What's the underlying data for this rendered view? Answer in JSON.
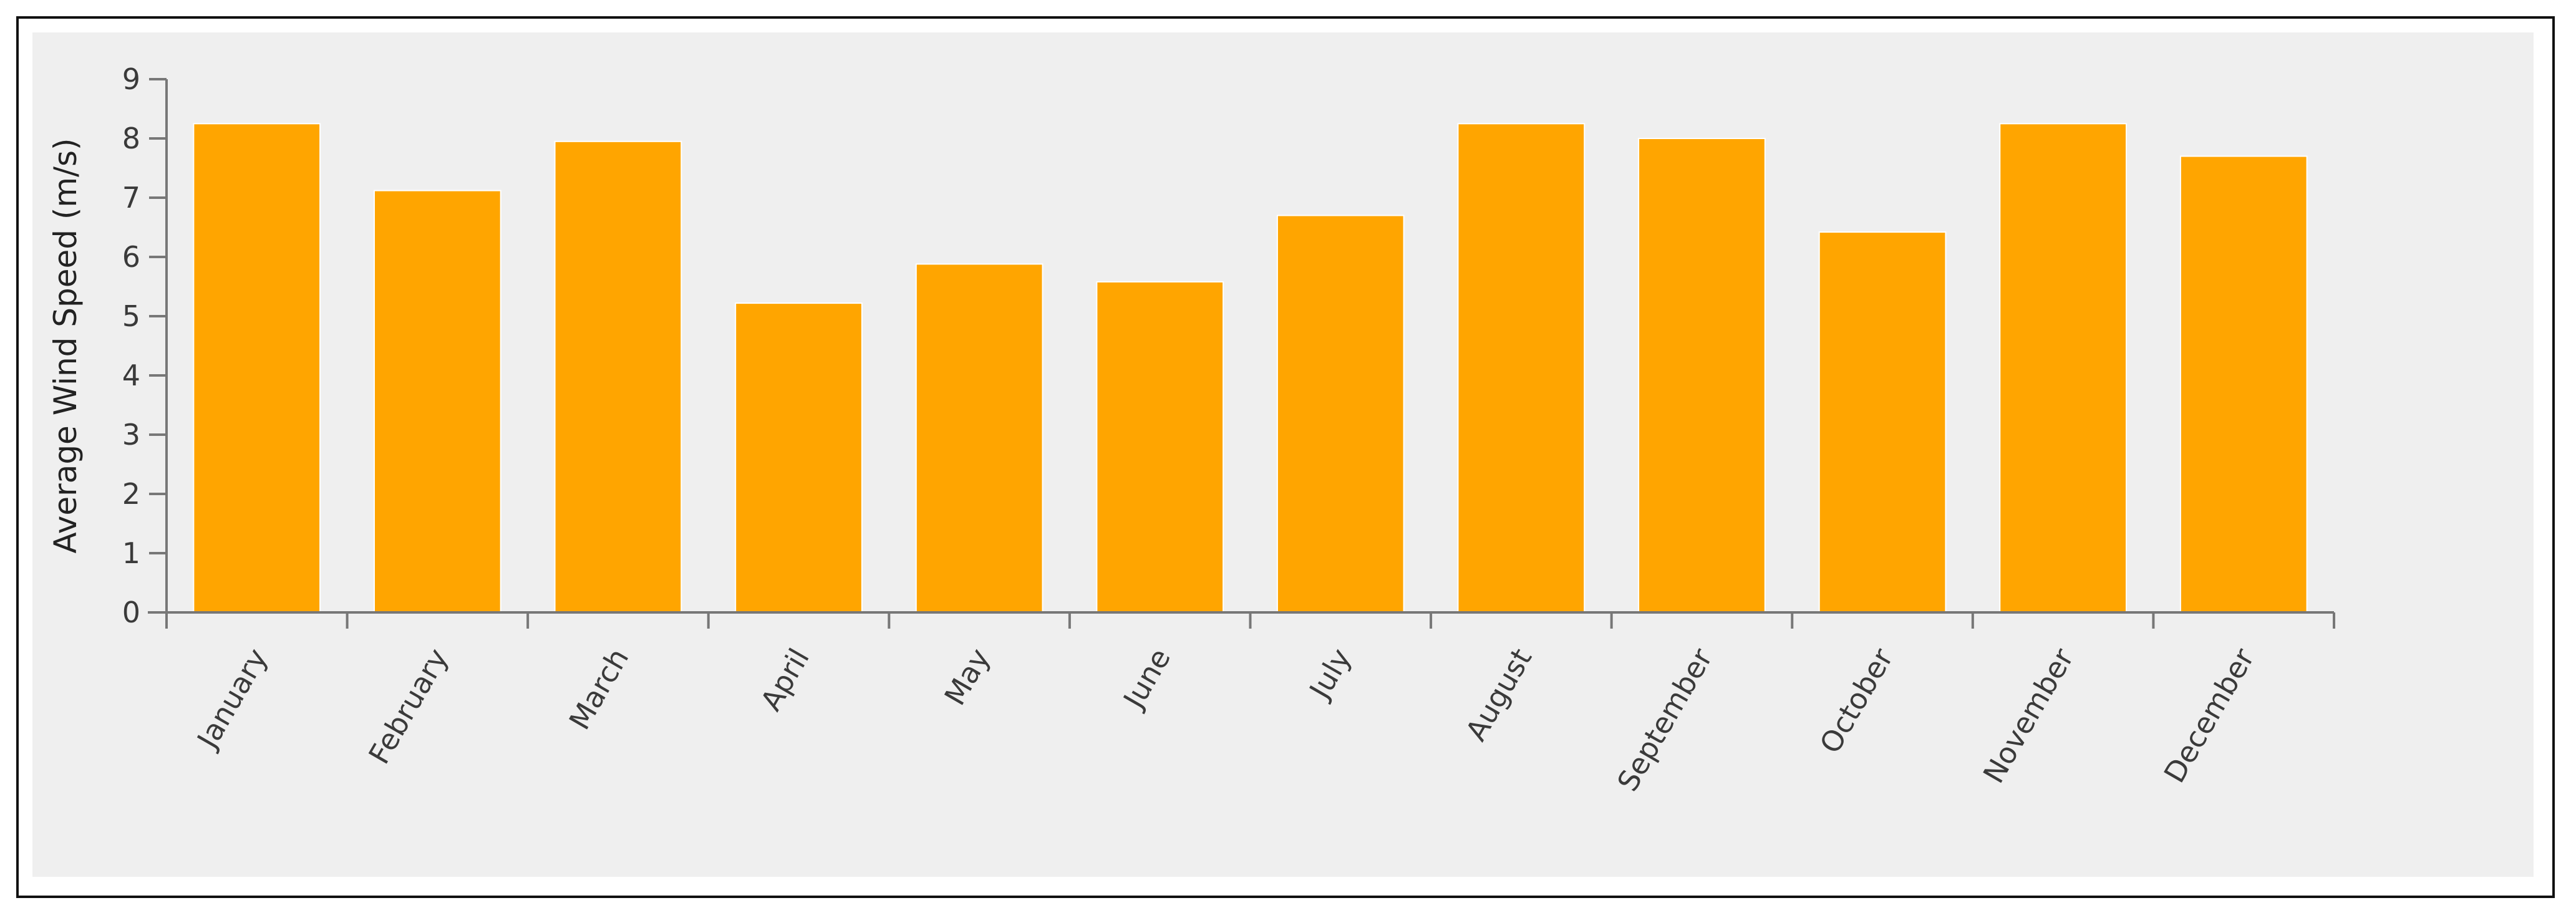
{
  "chart_data": {
    "type": "bar",
    "categories": [
      "January",
      "February",
      "March",
      "April",
      "May",
      "June",
      "July",
      "August",
      "September",
      "October",
      "November",
      "December"
    ],
    "series": [
      {
        "values": [
          8.25,
          7.12,
          7.95,
          5.22,
          5.88,
          5.58,
          6.7,
          8.25,
          8.0,
          6.42,
          8.25,
          7.7
        ]
      }
    ],
    "title": "",
    "xlabel": "",
    "ylabel": "Average Wind Speed (m/s)",
    "ylim": [
      0,
      9
    ],
    "yticks": [
      0,
      1,
      2,
      3,
      4,
      5,
      6,
      7,
      8,
      9
    ],
    "grid": false,
    "legend": "none",
    "colors": {
      "bar": "#FFA500",
      "axis": "#777777",
      "panel": "#EFEFEF",
      "frame": "#111111"
    }
  }
}
